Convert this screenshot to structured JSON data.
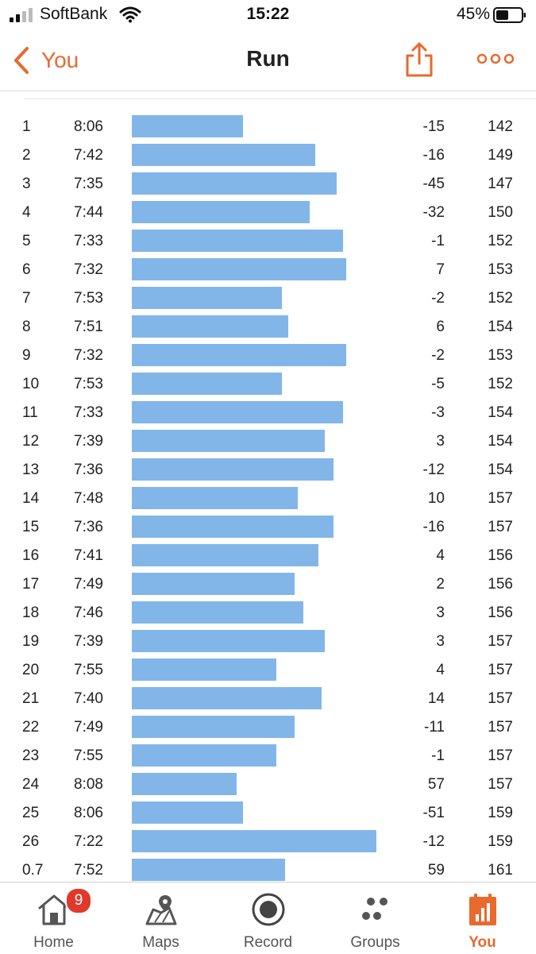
{
  "status_bar": {
    "carrier": "SoftBank",
    "time": "15:22",
    "battery": "45%"
  },
  "nav": {
    "back_label": "You",
    "title": "Run"
  },
  "colors": {
    "accent": "#e86a2f",
    "bar": "#82b6e9",
    "badge": "#e0392b"
  },
  "splits": [
    {
      "num": "1",
      "pace": "8:06",
      "elev": "-15",
      "hr": "142",
      "pace_sec": 486
    },
    {
      "num": "2",
      "pace": "7:42",
      "elev": "-16",
      "hr": "149",
      "pace_sec": 462
    },
    {
      "num": "3",
      "pace": "7:35",
      "elev": "-45",
      "hr": "147",
      "pace_sec": 455
    },
    {
      "num": "4",
      "pace": "7:44",
      "elev": "-32",
      "hr": "150",
      "pace_sec": 464
    },
    {
      "num": "5",
      "pace": "7:33",
      "elev": "-1",
      "hr": "152",
      "pace_sec": 453
    },
    {
      "num": "6",
      "pace": "7:32",
      "elev": "7",
      "hr": "153",
      "pace_sec": 452
    },
    {
      "num": "7",
      "pace": "7:53",
      "elev": "-2",
      "hr": "152",
      "pace_sec": 473
    },
    {
      "num": "8",
      "pace": "7:51",
      "elev": "6",
      "hr": "154",
      "pace_sec": 471
    },
    {
      "num": "9",
      "pace": "7:32",
      "elev": "-2",
      "hr": "153",
      "pace_sec": 452
    },
    {
      "num": "10",
      "pace": "7:53",
      "elev": "-5",
      "hr": "152",
      "pace_sec": 473
    },
    {
      "num": "11",
      "pace": "7:33",
      "elev": "-3",
      "hr": "154",
      "pace_sec": 453
    },
    {
      "num": "12",
      "pace": "7:39",
      "elev": "3",
      "hr": "154",
      "pace_sec": 459
    },
    {
      "num": "13",
      "pace": "7:36",
      "elev": "-12",
      "hr": "154",
      "pace_sec": 456
    },
    {
      "num": "14",
      "pace": "7:48",
      "elev": "10",
      "hr": "157",
      "pace_sec": 468
    },
    {
      "num": "15",
      "pace": "7:36",
      "elev": "-16",
      "hr": "157",
      "pace_sec": 456
    },
    {
      "num": "16",
      "pace": "7:41",
      "elev": "4",
      "hr": "156",
      "pace_sec": 461
    },
    {
      "num": "17",
      "pace": "7:49",
      "elev": "2",
      "hr": "156",
      "pace_sec": 469
    },
    {
      "num": "18",
      "pace": "7:46",
      "elev": "3",
      "hr": "156",
      "pace_sec": 466
    },
    {
      "num": "19",
      "pace": "7:39",
      "elev": "3",
      "hr": "157",
      "pace_sec": 459
    },
    {
      "num": "20",
      "pace": "7:55",
      "elev": "4",
      "hr": "157",
      "pace_sec": 475
    },
    {
      "num": "21",
      "pace": "7:40",
      "elev": "14",
      "hr": "157",
      "pace_sec": 460
    },
    {
      "num": "22",
      "pace": "7:49",
      "elev": "-11",
      "hr": "157",
      "pace_sec": 469
    },
    {
      "num": "23",
      "pace": "7:55",
      "elev": "-1",
      "hr": "157",
      "pace_sec": 475
    },
    {
      "num": "24",
      "pace": "8:08",
      "elev": "57",
      "hr": "157",
      "pace_sec": 488
    },
    {
      "num": "25",
      "pace": "8:06",
      "elev": "-51",
      "hr": "159",
      "pace_sec": 486
    },
    {
      "num": "26",
      "pace": "7:22",
      "elev": "-12",
      "hr": "159",
      "pace_sec": 442
    },
    {
      "num": "0.7",
      "pace": "7:52",
      "elev": "59",
      "hr": "161",
      "pace_sec": 472
    }
  ],
  "tabs": [
    {
      "label": "Home",
      "icon": "home-icon",
      "badge": "9",
      "active": false
    },
    {
      "label": "Maps",
      "icon": "maps-icon",
      "active": false
    },
    {
      "label": "Record",
      "icon": "record-icon",
      "active": false
    },
    {
      "label": "Groups",
      "icon": "groups-icon",
      "active": false
    },
    {
      "label": "You",
      "icon": "you-icon",
      "active": true
    }
  ]
}
